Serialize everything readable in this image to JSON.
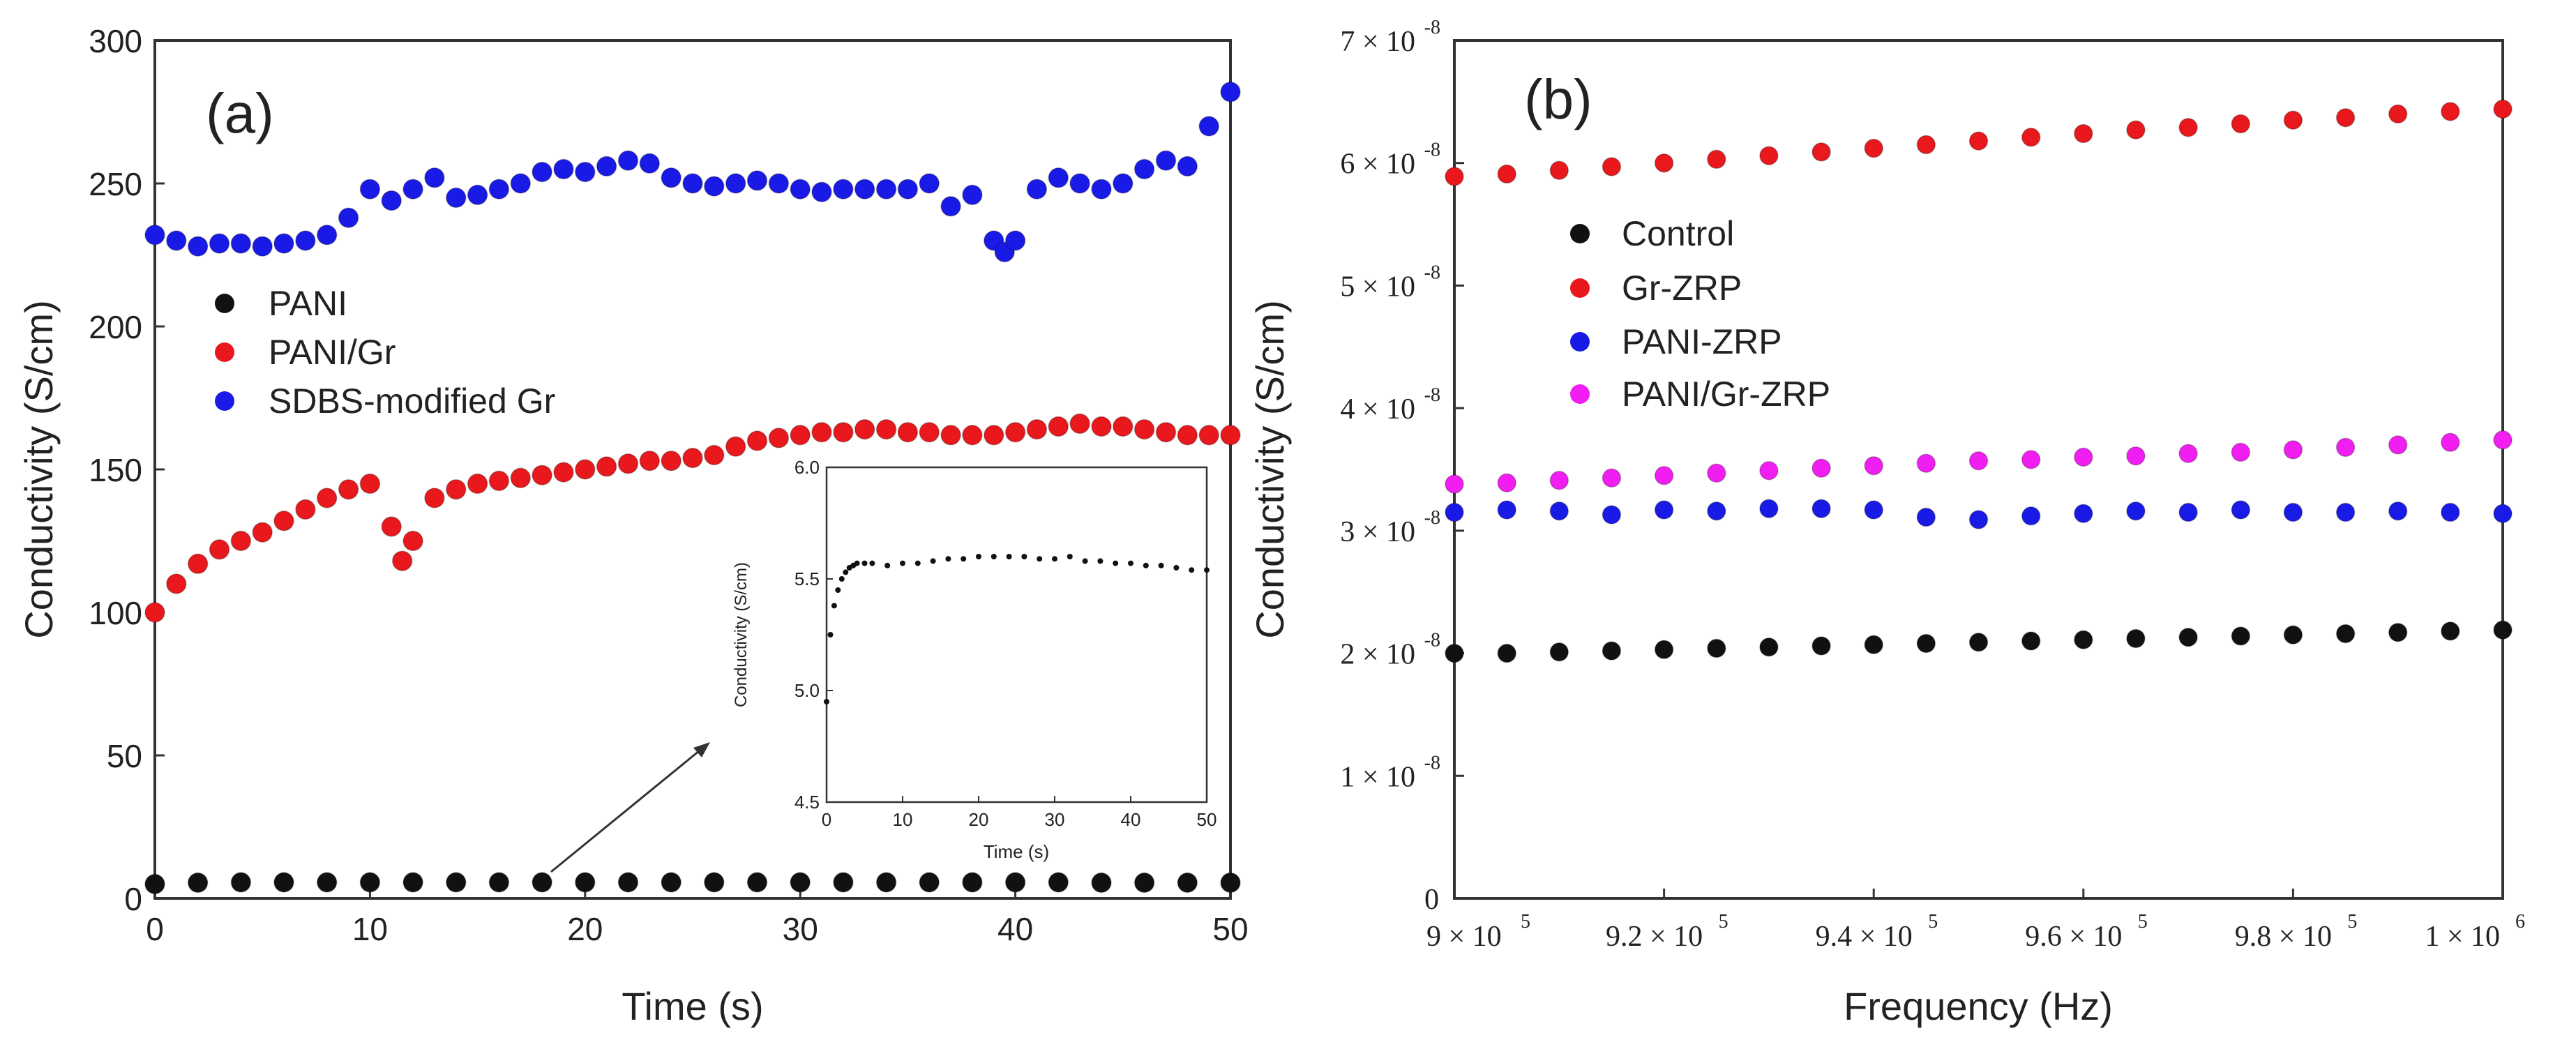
{
  "chart_data": [
    {
      "id": "a",
      "type": "scatter",
      "panel_label": "(a)",
      "xlabel": "Time (s)",
      "ylabel": "Conductivity (S/cm)",
      "xlim": [
        0,
        50
      ],
      "ylim": [
        0,
        300
      ],
      "xticks": [
        0,
        10,
        20,
        30,
        40,
        50
      ],
      "yticks": [
        0,
        50,
        100,
        150,
        200,
        250,
        300
      ],
      "legend": {
        "position": "upper-left",
        "entries": [
          "PANI",
          "PANI/Gr",
          "SDBS-modified Gr"
        ]
      },
      "series": [
        {
          "name": "PANI",
          "color": "#111111",
          "x": [
            0,
            2,
            4,
            6,
            8,
            10,
            12,
            14,
            16,
            18,
            20,
            22,
            24,
            26,
            28,
            30,
            32,
            34,
            36,
            38,
            40,
            42,
            44,
            46,
            48,
            50
          ],
          "y": [
            5,
            5.5,
            5.6,
            5.6,
            5.6,
            5.6,
            5.6,
            5.6,
            5.6,
            5.6,
            5.6,
            5.6,
            5.6,
            5.6,
            5.6,
            5.6,
            5.6,
            5.6,
            5.6,
            5.6,
            5.6,
            5.6,
            5.5,
            5.5,
            5.5,
            5.5
          ]
        },
        {
          "name": "PANI/Gr",
          "color": "#e8181c",
          "x": [
            0,
            1,
            2,
            3,
            4,
            5,
            6,
            7,
            8,
            9,
            10,
            11,
            11.5,
            12,
            13,
            14,
            15,
            16,
            17,
            18,
            19,
            20,
            21,
            22,
            23,
            24,
            25,
            26,
            27,
            28,
            29,
            30,
            31,
            32,
            33,
            34,
            35,
            36,
            37,
            38,
            39,
            40,
            41,
            42,
            43,
            44,
            45,
            46,
            47,
            48,
            49,
            50
          ],
          "y": [
            100,
            110,
            117,
            122,
            125,
            128,
            132,
            136,
            140,
            143,
            145,
            130,
            118,
            125,
            140,
            143,
            145,
            146,
            147,
            148,
            149,
            150,
            151,
            152,
            153,
            153,
            154,
            155,
            158,
            160,
            161,
            162,
            163,
            163,
            164,
            164,
            163,
            163,
            162,
            162,
            162,
            163,
            164,
            165,
            166,
            165,
            165,
            164,
            163,
            162,
            162,
            162
          ]
        },
        {
          "name": "SDBS-modified Gr",
          "color": "#1a1ae6",
          "x": [
            0,
            1,
            2,
            3,
            4,
            5,
            6,
            7,
            8,
            9,
            10,
            11,
            12,
            13,
            14,
            15,
            16,
            17,
            18,
            19,
            20,
            21,
            22,
            23,
            24,
            25,
            26,
            27,
            28,
            29,
            30,
            31,
            32,
            33,
            34,
            35,
            36,
            37,
            38,
            39,
            39.5,
            40,
            41,
            42,
            43,
            44,
            45,
            46,
            47,
            48,
            49,
            50
          ],
          "y": [
            232,
            230,
            228,
            229,
            229,
            228,
            229,
            230,
            232,
            238,
            248,
            244,
            248,
            252,
            245,
            246,
            248,
            250,
            254,
            255,
            254,
            256,
            258,
            257,
            252,
            250,
            249,
            250,
            251,
            250,
            248,
            247,
            248,
            248,
            248,
            248,
            250,
            242,
            246,
            230,
            226,
            230,
            248,
            252,
            250,
            248,
            250,
            255,
            258,
            256,
            270,
            282
          ]
        }
      ],
      "inset": {
        "type": "scatter",
        "xlabel": "Time (s)",
        "ylabel": "Conductivity (S/cm)",
        "xlim": [
          0,
          50
        ],
        "ylim": [
          4.5,
          6.0
        ],
        "xticks": [
          0,
          10,
          20,
          30,
          40,
          50
        ],
        "yticks": [
          4.5,
          5.0,
          5.5,
          6.0
        ],
        "series": [
          {
            "name": "PANI",
            "color": "#111111",
            "x": [
              0,
              0.5,
              1,
              1.5,
              2,
              2.5,
              3,
              3.5,
              4,
              5,
              6,
              8,
              10,
              12,
              14,
              16,
              18,
              20,
              22,
              24,
              26,
              28,
              30,
              32,
              34,
              36,
              38,
              40,
              42,
              44,
              46,
              48,
              50
            ],
            "y": [
              4.95,
              5.25,
              5.38,
              5.45,
              5.5,
              5.53,
              5.55,
              5.56,
              5.57,
              5.57,
              5.57,
              5.56,
              5.57,
              5.57,
              5.58,
              5.59,
              5.59,
              5.6,
              5.6,
              5.6,
              5.6,
              5.59,
              5.59,
              5.6,
              5.58,
              5.58,
              5.57,
              5.57,
              5.56,
              5.56,
              5.55,
              5.54,
              5.54
            ]
          }
        ]
      }
    },
    {
      "id": "b",
      "type": "scatter",
      "panel_label": "(b)",
      "xlabel": "Frequency (Hz)",
      "ylabel": "Conductivity (S/cm)",
      "xlim": [
        900000,
        1000000
      ],
      "ylim": [
        0,
        7e-08
      ],
      "xtick_labels": [
        "9 × 10",
        "9.2 × 10",
        "9.4 × 10",
        "9.6 × 10",
        "9.8 × 10",
        "1 × 10"
      ],
      "xtick_exponents": [
        "5",
        "5",
        "5",
        "5",
        "5",
        "6"
      ],
      "ytick_labels": [
        "0",
        "1 × 10",
        "2 × 10",
        "3 × 10",
        "4 × 10",
        "5 × 10",
        "6 × 10",
        "7 × 10"
      ],
      "ytick_exponents": [
        "",
        "-8",
        "-8",
        "-8",
        "-8",
        "-8",
        "-8",
        "-8"
      ],
      "legend": {
        "position": "upper-left",
        "entries": [
          "Control",
          "Gr-ZRP",
          "PANI-ZRP",
          "PANI/Gr-ZRP"
        ]
      },
      "x": [
        900000,
        905000,
        910000,
        915000,
        920000,
        925000,
        930000,
        935000,
        940000,
        945000,
        950000,
        955000,
        960000,
        965000,
        970000,
        975000,
        980000,
        985000,
        990000,
        995000,
        1000000
      ],
      "series": [
        {
          "name": "Control",
          "color": "#111111",
          "y": [
            2e-08,
            2e-08,
            2.01e-08,
            2.02e-08,
            2.03e-08,
            2.04e-08,
            2.05e-08,
            2.06e-08,
            2.07e-08,
            2.08e-08,
            2.09e-08,
            2.1e-08,
            2.11e-08,
            2.12e-08,
            2.13e-08,
            2.14e-08,
            2.15e-08,
            2.16e-08,
            2.17e-08,
            2.18e-08,
            2.19e-08
          ]
        },
        {
          "name": "Gr-ZRP",
          "color": "#e8181c",
          "y": [
            5.89e-08,
            5.91e-08,
            5.94e-08,
            5.97e-08,
            6e-08,
            6.03e-08,
            6.06e-08,
            6.09e-08,
            6.12e-08,
            6.15e-08,
            6.18e-08,
            6.21e-08,
            6.24e-08,
            6.27e-08,
            6.29e-08,
            6.32e-08,
            6.35e-08,
            6.37e-08,
            6.4e-08,
            6.42e-08,
            6.44e-08
          ]
        },
        {
          "name": "PANI-ZRP",
          "color": "#1a1ae6",
          "y": [
            3.15e-08,
            3.17e-08,
            3.16e-08,
            3.13e-08,
            3.17e-08,
            3.16e-08,
            3.18e-08,
            3.18e-08,
            3.17e-08,
            3.11e-08,
            3.09e-08,
            3.12e-08,
            3.14e-08,
            3.16e-08,
            3.15e-08,
            3.17e-08,
            3.15e-08,
            3.15e-08,
            3.16e-08,
            3.15e-08,
            3.14e-08
          ]
        },
        {
          "name": "PANI/Gr-ZRP",
          "color": "#f01ef0",
          "y": [
            3.38e-08,
            3.39e-08,
            3.41e-08,
            3.43e-08,
            3.45e-08,
            3.47e-08,
            3.49e-08,
            3.51e-08,
            3.53e-08,
            3.55e-08,
            3.57e-08,
            3.58e-08,
            3.6e-08,
            3.61e-08,
            3.63e-08,
            3.64e-08,
            3.66e-08,
            3.68e-08,
            3.7e-08,
            3.72e-08,
            3.74e-08
          ]
        }
      ]
    }
  ]
}
